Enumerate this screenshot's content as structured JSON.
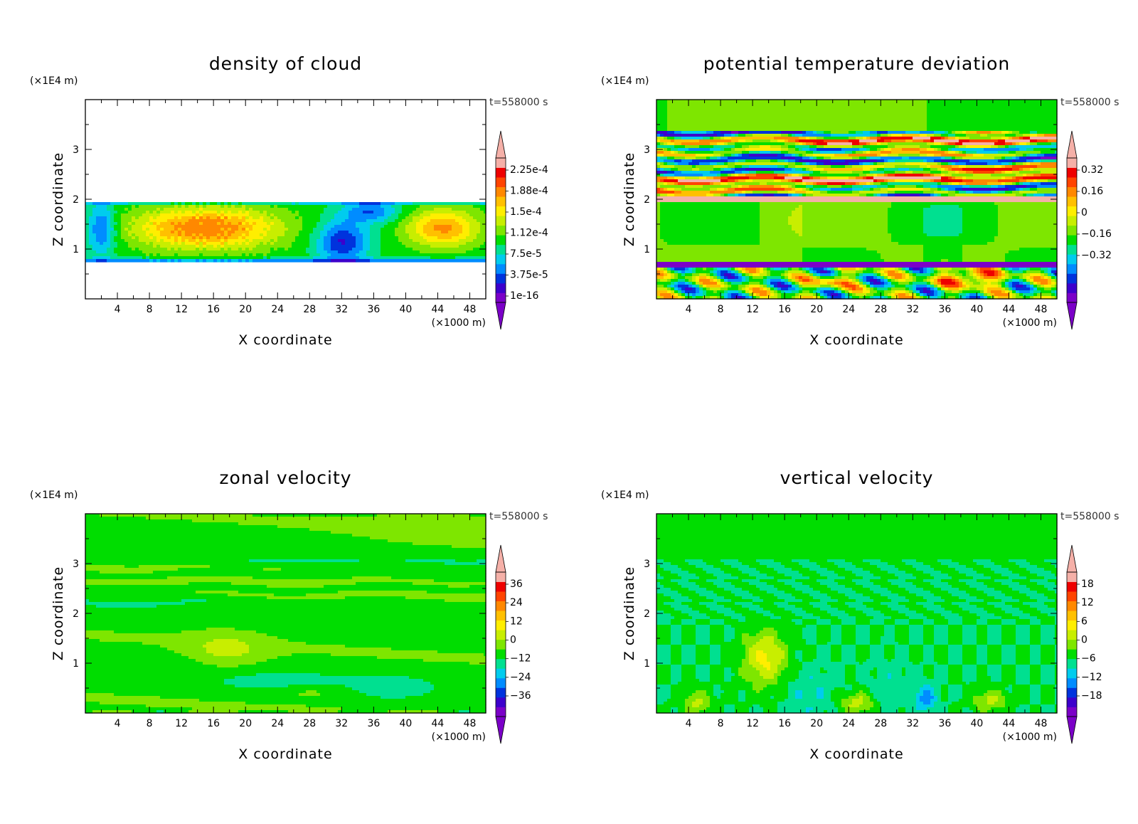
{
  "colors": {
    "palette": [
      "#7b00c8",
      "#3d00cc",
      "#0033dd",
      "#008cff",
      "#00ccee",
      "#00e090",
      "#00dd00",
      "#7ee600",
      "#c8ee00",
      "#ffee00",
      "#ffc000",
      "#ff8800",
      "#ff4400",
      "#ee0000",
      "#f5b0a8"
    ]
  },
  "chart_data": [
    {
      "type": "heatmap",
      "title": "density of cloud",
      "xlabel": "X coordinate",
      "ylabel": "Z coordinate",
      "x_unit": "(×1000 m)",
      "y_unit": "(×1E4 m)",
      "time_label": "t=558000 s",
      "xlim": [
        0,
        50
      ],
      "ylim": [
        0,
        4
      ],
      "x_ticks": [
        "4",
        "8",
        "12",
        "16",
        "20",
        "24",
        "28",
        "32",
        "36",
        "40",
        "44",
        "48"
      ],
      "y_ticks": [
        "1",
        "2",
        "3"
      ],
      "colorbar_labels": [
        "2.25e-4",
        "1.88e-4",
        "1.5e-4",
        "1.12e-4",
        "7.5e-5",
        "3.75e-5",
        "1e-16"
      ],
      "colorbar_levels": [
        0,
        3.75e-05,
        7.5e-05,
        0.000112,
        0.00015,
        0.000188,
        0.000225
      ],
      "cloud_layer_z": [
        0.7,
        1.95
      ]
    },
    {
      "type": "heatmap",
      "title": "potential temperature deviation",
      "xlabel": "X coordinate",
      "ylabel": "Z coordinate",
      "x_unit": "(×1000 m)",
      "y_unit": "(×1E4 m)",
      "time_label": "t=558000 s",
      "xlim": [
        0,
        50
      ],
      "ylim": [
        0,
        4
      ],
      "x_ticks": [
        "4",
        "8",
        "12",
        "16",
        "20",
        "24",
        "28",
        "32",
        "36",
        "40",
        "44",
        "48"
      ],
      "y_ticks": [
        "1",
        "2",
        "3"
      ],
      "colorbar_labels": [
        "0.32",
        "0.16",
        "0",
        "−0.16",
        "−0.32"
      ],
      "colorbar_levels": [
        -0.32,
        -0.16,
        0,
        0.16,
        0.32
      ]
    },
    {
      "type": "heatmap",
      "title": "zonal velocity",
      "xlabel": "X coordinate",
      "ylabel": "Z coordinate",
      "x_unit": "(×1000 m)",
      "y_unit": "(×1E4 m)",
      "time_label": "t=558000 s",
      "xlim": [
        0,
        50
      ],
      "ylim": [
        0,
        4
      ],
      "x_ticks": [
        "4",
        "8",
        "12",
        "16",
        "20",
        "24",
        "28",
        "32",
        "36",
        "40",
        "44",
        "48"
      ],
      "y_ticks": [
        "1",
        "2",
        "3"
      ],
      "colorbar_labels": [
        "36",
        "24",
        "12",
        "0",
        "−12",
        "−24",
        "−36"
      ],
      "colorbar_levels": [
        -36,
        -24,
        -12,
        0,
        12,
        24,
        36
      ]
    },
    {
      "type": "heatmap",
      "title": "vertical velocity",
      "xlabel": "X coordinate",
      "ylabel": "Z coordinate",
      "x_unit": "(×1000 m)",
      "y_unit": "(×1E4 m)",
      "time_label": "t=558000 s",
      "xlim": [
        0,
        50
      ],
      "ylim": [
        0,
        4
      ],
      "x_ticks": [
        "4",
        "8",
        "12",
        "16",
        "20",
        "24",
        "28",
        "32",
        "36",
        "40",
        "44",
        "48"
      ],
      "y_ticks": [
        "1",
        "2",
        "3"
      ],
      "colorbar_labels": [
        "18",
        "12",
        "6",
        "0",
        "−6",
        "−12",
        "−18"
      ],
      "colorbar_levels": [
        -18,
        -12,
        -6,
        0,
        6,
        12,
        18
      ]
    }
  ]
}
